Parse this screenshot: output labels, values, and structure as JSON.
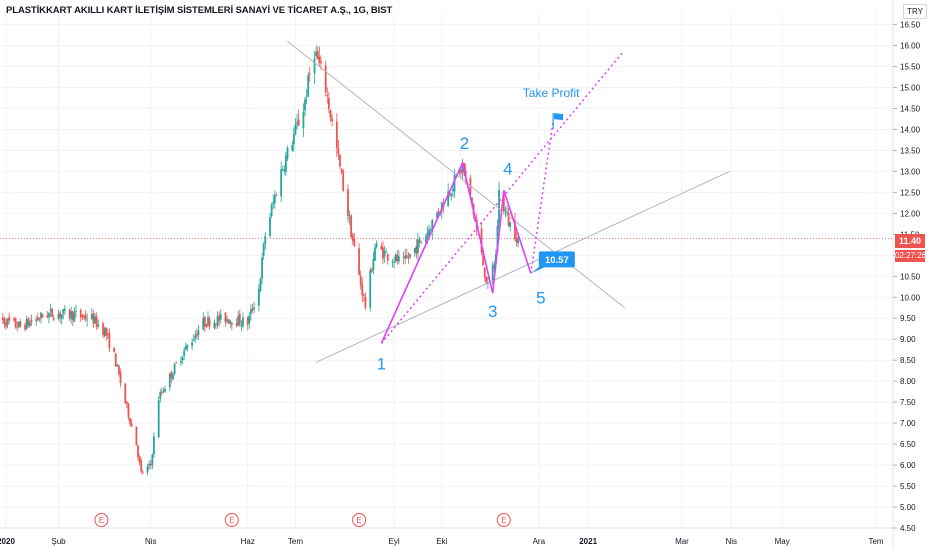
{
  "header": {
    "title": "PLASTİKKART AKILLI KART İLETİŞİM SİSTEMLERİ SANAYİ VE TİCARET A.Ş., 1G, BIST",
    "currency": "TRY"
  },
  "last_price": {
    "value": "11.40",
    "countdown": "02:27:26"
  },
  "chart_data": {
    "type": "candlestick",
    "ylim": [
      4.5,
      16.8
    ],
    "y_ticks": [
      "16.50",
      "16.00",
      "15.50",
      "15.00",
      "14.50",
      "14.00",
      "13.50",
      "13.00",
      "12.50",
      "12.00",
      "11.50",
      "11.00",
      "10.50",
      "10.00",
      "9.50",
      "9.00",
      "8.50",
      "8.00",
      "7.50",
      "7.00",
      "6.50",
      "6.00",
      "5.50",
      "5.00",
      "4.50"
    ],
    "x_ticks": [
      {
        "label": "2020",
        "date": "2020-01-01"
      },
      {
        "label": "Şub",
        "date": "2020-02-03"
      },
      {
        "label": "Nis",
        "date": "2020-04-01"
      },
      {
        "label": "Haz",
        "date": "2020-06-01"
      },
      {
        "label": "Tem",
        "date": "2020-07-01"
      },
      {
        "label": "Eyl",
        "date": "2020-09-01"
      },
      {
        "label": "Eki",
        "date": "2020-10-01"
      },
      {
        "label": "Ara",
        "date": "2020-12-01"
      },
      {
        "label": "2021",
        "date": "2021-01-01"
      },
      {
        "label": "Mar",
        "date": "2021-03-01"
      },
      {
        "label": "Nis",
        "date": "2021-04-01"
      },
      {
        "label": "May",
        "date": "2021-05-03"
      },
      {
        "label": "Tem",
        "date": "2021-07-01"
      }
    ],
    "earnings_markers": {
      "label": "E",
      "dates": [
        "2020-03-01",
        "2020-05-22",
        "2020-08-10",
        "2020-11-09"
      ]
    },
    "price_path": [
      {
        "date": "2019-12-26",
        "price": 9.5
      },
      {
        "date": "2020-01-10",
        "price": 9.3
      },
      {
        "date": "2020-01-27",
        "price": 9.6
      },
      {
        "date": "2020-02-10",
        "price": 9.6
      },
      {
        "date": "2020-02-24",
        "price": 9.5
      },
      {
        "date": "2020-03-03",
        "price": 9.2
      },
      {
        "date": "2020-03-09",
        "price": 8.6
      },
      {
        "date": "2020-03-16",
        "price": 7.5
      },
      {
        "date": "2020-03-23",
        "price": 6.5
      },
      {
        "date": "2020-03-26",
        "price": 5.8
      },
      {
        "date": "2020-04-01",
        "price": 6.0
      },
      {
        "date": "2020-04-06",
        "price": 7.6
      },
      {
        "date": "2020-04-20",
        "price": 8.6
      },
      {
        "date": "2020-05-04",
        "price": 9.4
      },
      {
        "date": "2020-05-18",
        "price": 9.5
      },
      {
        "date": "2020-06-01",
        "price": 9.4
      },
      {
        "date": "2020-06-08",
        "price": 10.2
      },
      {
        "date": "2020-06-12",
        "price": 11.5
      },
      {
        "date": "2020-06-22",
        "price": 13.0
      },
      {
        "date": "2020-07-06",
        "price": 14.5
      },
      {
        "date": "2020-07-13",
        "price": 15.9
      },
      {
        "date": "2020-07-20",
        "price": 15.0
      },
      {
        "date": "2020-07-27",
        "price": 13.5
      },
      {
        "date": "2020-08-03",
        "price": 12.0
      },
      {
        "date": "2020-08-10",
        "price": 10.5
      },
      {
        "date": "2020-08-14",
        "price": 9.8
      },
      {
        "date": "2020-08-20",
        "price": 11.2
      },
      {
        "date": "2020-08-28",
        "price": 11.0
      },
      {
        "date": "2020-09-07",
        "price": 10.8
      },
      {
        "date": "2020-09-21",
        "price": 11.5
      },
      {
        "date": "2020-10-05",
        "price": 12.5
      },
      {
        "date": "2020-10-14",
        "price": 13.1
      },
      {
        "date": "2020-10-20",
        "price": 12.2
      },
      {
        "date": "2020-10-26",
        "price": 11.0
      },
      {
        "date": "2020-10-30",
        "price": 10.2
      },
      {
        "date": "2020-11-04",
        "price": 11.0
      },
      {
        "date": "2020-11-06",
        "price": 12.5
      },
      {
        "date": "2020-11-12",
        "price": 11.8
      },
      {
        "date": "2020-11-18",
        "price": 11.4
      }
    ],
    "drawings": {
      "wave": [
        {
          "label": "1",
          "date": "2020-08-24",
          "price": 8.9
        },
        {
          "label": "2",
          "date": "2020-10-14",
          "price": 13.2
        },
        {
          "label": "3",
          "date": "2020-11-02",
          "price": 10.1
        },
        {
          "label": "4",
          "date": "2020-11-09",
          "price": 12.55
        },
        {
          "label": "5",
          "date": "2020-11-26",
          "price": 10.57
        }
      ],
      "target_label": "10.57",
      "take_profit": {
        "label": "Take Profit",
        "date": "2020-12-10",
        "price": 14.2
      },
      "upper_trendline": [
        {
          "date": "2020-06-26",
          "price": 16.1
        },
        {
          "date": "2021-01-24",
          "price": 9.75
        }
      ],
      "lower_trendline": [
        {
          "date": "2020-07-14",
          "price": 8.45
        },
        {
          "date": "2021-03-31",
          "price": 13.0
        }
      ],
      "channel_line": [
        {
          "date": "2020-08-24",
          "price": 8.9
        },
        {
          "date": "2021-01-23",
          "price": 15.85
        }
      ]
    }
  }
}
